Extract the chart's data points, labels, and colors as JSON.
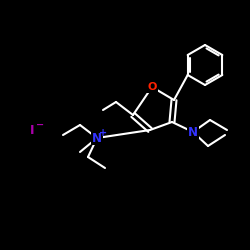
{
  "bg_color": "#000000",
  "atom_colors": {
    "N": "#3333ff",
    "O": "#ff2200",
    "I": "#aa00aa"
  },
  "bond_color": "#ffffff",
  "bond_width": 1.5,
  "figsize": [
    2.5,
    2.5
  ],
  "dpi": 100
}
